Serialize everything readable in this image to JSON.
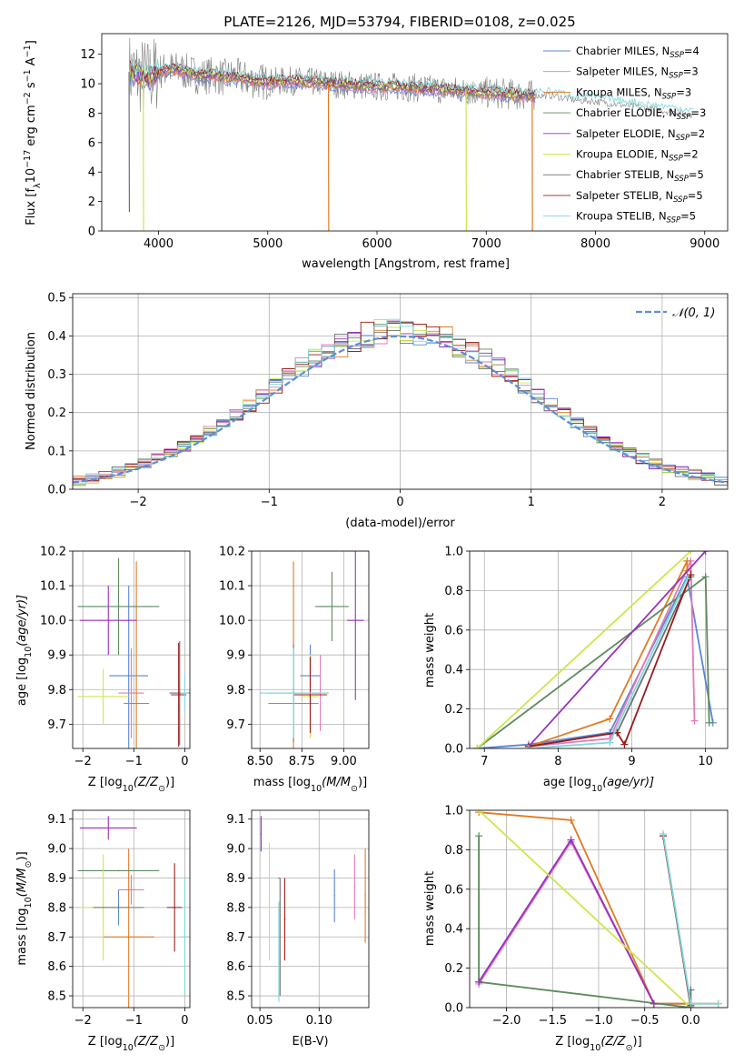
{
  "figure": {
    "title": "PLATE=2126, MJD=53794, FIBERID=0108, z=0.025"
  },
  "colors": {
    "Chabrier MILES": "#5a86d4",
    "Salpeter MILES": "#e57ab8",
    "Kroupa MILES": "#e07a22",
    "Chabrier ELODIE": "#5e8a5e",
    "Salpeter ELODIE": "#9b30c0",
    "Kroupa ELODIE": "#cbe84a",
    "Chabrier STELIB": "#707070",
    "Salpeter STELIB": "#9b1b1b",
    "Kroupa STELIB": "#7dd8dc",
    "data": "#808080",
    "gaussian": "#5b8fd6"
  },
  "chart_data": [
    {
      "id": "spectrum",
      "type": "line",
      "title": "PLATE=2126, MJD=53794, FIBERID=0108, z=0.025",
      "xlabel": "wavelength [Angstrom, rest frame]",
      "ylabel_parts": [
        "Flux [f",
        "λ",
        "10",
        "−17",
        " erg cm",
        "−2",
        " s",
        "−1",
        " A",
        "−1",
        "]"
      ],
      "xlim": [
        3480,
        9210
      ],
      "ylim": [
        0,
        13.4
      ],
      "xticks": [
        4000,
        5000,
        6000,
        7000,
        8000,
        9000
      ],
      "yticks": [
        0,
        2,
        4,
        6,
        8,
        10,
        12
      ],
      "grid": false,
      "legend_position": "upper-right",
      "legend": [
        {
          "name": "Chabrier MILES",
          "nssp": "4"
        },
        {
          "name": "Salpeter MILES",
          "nssp": "3"
        },
        {
          "name": "Kroupa MILES",
          "nssp": "3"
        },
        {
          "name": "Chabrier ELODIE",
          "nssp": "3"
        },
        {
          "name": "Salpeter ELODIE",
          "nssp": "2"
        },
        {
          "name": "Kroupa ELODIE",
          "nssp": "2"
        },
        {
          "name": "Chabrier STELIB",
          "nssp": "5"
        },
        {
          "name": "Salpeter STELIB",
          "nssp": "5"
        },
        {
          "name": "Kroupa STELIB",
          "nssp": "5"
        }
      ],
      "legend_nssp_label": "N",
      "legend_nssp_sub": "SSP",
      "continuum": {
        "x": [
          3740,
          3800,
          3900,
          4000,
          4100,
          4200,
          4300,
          4400,
          4500,
          4600,
          4700,
          4800,
          4900,
          5000,
          5200,
          5400,
          5600,
          5800,
          6000,
          6200,
          6400,
          6600,
          6800,
          7000,
          7200,
          7400,
          7600,
          7800,
          8000,
          8200,
          8400,
          8600,
          8800,
          8900
        ],
        "y": [
          10.8,
          10.6,
          10.4,
          10.8,
          11.0,
          10.9,
          10.7,
          10.5,
          10.6,
          10.4,
          10.5,
          10.3,
          10.2,
          10.1,
          10.2,
          10.1,
          10.0,
          9.9,
          9.8,
          9.8,
          9.7,
          9.6,
          9.5,
          9.4,
          9.3,
          9.2,
          9.2,
          8.9,
          8.8,
          8.6,
          8.4,
          8.2,
          8.0,
          7.9
        ]
      },
      "dropouts": [
        {
          "series": "Kroupa MILES",
          "x": 5555,
          "y": 0
        },
        {
          "series": "Kroupa ELODIE",
          "x": 6815,
          "y": 0
        },
        {
          "series": "Kroupa MILES",
          "x": 7420,
          "y": 0
        },
        {
          "series": "Chabrier STELIB",
          "x": 3730,
          "y": 1.3
        },
        {
          "series": "Kroupa ELODIE",
          "x": 3860,
          "y": 0
        }
      ]
    },
    {
      "id": "residuals",
      "type": "histogram",
      "xlabel": "(data-model)/error",
      "ylabel": "Normed distribution",
      "xlim": [
        -2.5,
        2.5
      ],
      "ylim": [
        0,
        0.51
      ],
      "xticks": [
        -2,
        -1,
        0,
        1,
        2
      ],
      "yticks": [
        0.0,
        0.1,
        0.2,
        0.3,
        0.4,
        0.5
      ],
      "grid": true,
      "legend_position": "upper-right",
      "gaussian_label": "𝒩(0, 1)",
      "bin_width": 0.1,
      "bin_start": -2.5
    },
    {
      "id": "age-vs-Z",
      "type": "errorbar",
      "xlabel_parts": [
        "Z [log",
        "10",
        "(Z/Z",
        "⊙",
        ")]"
      ],
      "ylabel_parts": [
        "age  [log",
        "10",
        "(age/yr)]"
      ],
      "xlim": [
        -2.2,
        0.1
      ],
      "ylim": [
        9.63,
        10.2
      ],
      "xticks": [
        -2,
        -1,
        0
      ],
      "yticks": [
        9.7,
        9.8,
        9.9,
        10.0,
        10.1,
        10.2
      ],
      "grid": true,
      "points": [
        {
          "series": "Chabrier MILES",
          "x": -1.1,
          "xerr": 0.38,
          "y": 9.84,
          "yerr": 0.26
        },
        {
          "series": "Salpeter MILES",
          "x": -1.05,
          "xerr": 0.25,
          "y": 9.79,
          "yerr": 0.13
        },
        {
          "series": "Kroupa MILES",
          "x": -0.95,
          "xerr": 0.25,
          "y": 9.76,
          "yerr": 0.41
        },
        {
          "series": "Chabrier ELODIE",
          "x": -1.3,
          "xerr": 0.8,
          "y": 10.04,
          "yerr": 0.14
        },
        {
          "series": "Salpeter ELODIE",
          "x": -1.5,
          "xerr": 0.56,
          "y": 10.0,
          "yerr": 0.1
        },
        {
          "series": "Kroupa ELODIE",
          "x": -1.6,
          "xerr": 0.5,
          "y": 9.78,
          "yerr": 0.08
        },
        {
          "series": "Chabrier STELIB",
          "x": -0.1,
          "xerr": 0.2,
          "y": 9.79,
          "yerr": 0.15
        },
        {
          "series": "Salpeter STELIB",
          "x": -0.12,
          "xerr": 0.15,
          "y": 9.785,
          "yerr": 0.15
        },
        {
          "series": "Kroupa STELIB",
          "x": 0.0,
          "xerr": 0.08,
          "y": 9.79,
          "yerr": 0.05
        }
      ]
    },
    {
      "id": "age-vs-mass",
      "type": "errorbar",
      "xlabel_parts": [
        "mass [log",
        "10",
        "(M/M",
        "⊙",
        ")]"
      ],
      "xlim": [
        8.45,
        9.15
      ],
      "ylim": [
        9.63,
        10.2
      ],
      "xticks": [
        8.5,
        8.75,
        9.0
      ],
      "yticks": [
        9.7,
        9.8,
        9.9,
        10.0,
        10.1,
        10.2
      ],
      "grid": true,
      "points": [
        {
          "series": "Chabrier MILES",
          "x": 8.8,
          "xerr": 0.06,
          "y": 9.84,
          "yerr": 0.09
        },
        {
          "series": "Salpeter MILES",
          "x": 8.86,
          "xerr": 0.05,
          "y": 9.79,
          "yerr": 0.11
        },
        {
          "series": "Kroupa MILES",
          "x": 8.7,
          "xerr": 0.15,
          "y": 9.76,
          "yerr": 0.41
        },
        {
          "series": "Chabrier ELODIE",
          "x": 8.93,
          "xerr": 0.1,
          "y": 10.04,
          "yerr": 0.1
        },
        {
          "series": "Salpeter ELODIE",
          "x": 9.07,
          "xerr": 0.05,
          "y": 10.0,
          "yerr": 0.23
        },
        {
          "series": "Kroupa ELODIE",
          "x": 8.8,
          "xerr": 0.05,
          "y": 9.78,
          "yerr": 0.12
        },
        {
          "series": "Chabrier STELIB",
          "x": 8.7,
          "xerr": 0.15,
          "y": 9.79,
          "yerr": 0.14
        },
        {
          "series": "Salpeter STELIB",
          "x": 8.8,
          "xerr": 0.1,
          "y": 9.785,
          "yerr": 0.11
        },
        {
          "series": "Kroupa STELIB",
          "x": 8.7,
          "xerr": 0.2,
          "y": 9.79,
          "yerr": 0.13
        }
      ]
    },
    {
      "id": "massweight-vs-age",
      "type": "line",
      "xlabel_parts": [
        "age  [log",
        "10",
        "(age/yr)]"
      ],
      "ylabel": "mass weight",
      "xlim": [
        6.8,
        10.3
      ],
      "ylim": [
        0,
        1.0
      ],
      "xticks": [
        7,
        8,
        9,
        10
      ],
      "yticks": [
        0.0,
        0.2,
        0.4,
        0.6,
        0.8,
        1.0
      ],
      "grid": true,
      "series": [
        {
          "name": "Chabrier MILES",
          "x": [
            6.9,
            7.6,
            8.7,
            9.75,
            10.1
          ],
          "y": [
            0.0,
            0.02,
            0.08,
            0.87,
            0.13
          ]
        },
        {
          "name": "Salpeter MILES",
          "x": [
            7.6,
            8.7,
            9.8,
            9.85
          ],
          "y": [
            0.01,
            0.05,
            0.95,
            0.14
          ]
        },
        {
          "name": "Kroupa MILES",
          "x": [
            7.6,
            8.7,
            9.75,
            9.75
          ],
          "y": [
            0.01,
            0.15,
            0.95,
            0.9
          ]
        },
        {
          "name": "Chabrier ELODIE",
          "x": [
            6.9,
            10.0,
            10.05
          ],
          "y": [
            0.0,
            0.87,
            0.13
          ]
        },
        {
          "name": "Salpeter ELODIE",
          "x": [
            7.6,
            10.0
          ],
          "y": [
            0.01,
            1.0
          ]
        },
        {
          "name": "Kroupa ELODIE",
          "x": [
            6.9,
            9.8
          ],
          "y": [
            0.0,
            1.0
          ]
        },
        {
          "name": "Chabrier STELIB",
          "x": [
            7.6,
            8.8,
            9.8
          ],
          "y": [
            0.01,
            0.08,
            0.87
          ]
        },
        {
          "name": "Salpeter STELIB",
          "x": [
            7.6,
            8.8,
            8.9,
            9.8
          ],
          "y": [
            0.01,
            0.08,
            0.02,
            0.88
          ]
        },
        {
          "name": "Kroupa STELIB",
          "x": [
            7.6,
            8.7,
            9.75
          ],
          "y": [
            0.0,
            0.03,
            0.86
          ]
        }
      ]
    },
    {
      "id": "mass-vs-Z",
      "type": "errorbar",
      "xlabel_parts": [
        "Z [log",
        "10",
        "(Z/Z",
        "⊙",
        ")]"
      ],
      "ylabel_parts": [
        "mass [log",
        "10",
        "(M/M",
        "⊙",
        ")]"
      ],
      "xlim": [
        -2.2,
        0.1
      ],
      "ylim": [
        8.46,
        9.13
      ],
      "xticks": [
        -2,
        -1,
        0
      ],
      "yticks": [
        8.5,
        8.6,
        8.7,
        8.8,
        8.9,
        9.0,
        9.1
      ],
      "grid": true,
      "points": [
        {
          "series": "Chabrier MILES",
          "x": -1.3,
          "xerr": 0.0,
          "y": 8.8,
          "yerr": 0.06
        },
        {
          "series": "Salpeter MILES",
          "x": -1.05,
          "xerr": 0.25,
          "y": 8.86,
          "yerr": 0.05
        },
        {
          "series": "Kroupa MILES",
          "x": -1.1,
          "xerr": 0.5,
          "y": 8.7,
          "yerr": 0.3
        },
        {
          "series": "Chabrier ELODIE",
          "x": -1.3,
          "xerr": 0.8,
          "y": 8.925,
          "yerr": 0.0
        },
        {
          "series": "Salpeter ELODIE",
          "x": -1.5,
          "xerr": 0.56,
          "y": 9.07,
          "yerr": 0.04
        },
        {
          "series": "Kroupa ELODIE",
          "x": -1.6,
          "xerr": 0.5,
          "y": 8.8,
          "yerr": 0.18
        },
        {
          "series": "Chabrier STELIB",
          "x": -1.3,
          "xerr": 0.5,
          "y": 8.8,
          "yerr": 0.0
        },
        {
          "series": "Salpeter STELIB",
          "x": -0.2,
          "xerr": 0.15,
          "y": 8.8,
          "yerr": 0.15
        },
        {
          "series": "Kroupa STELIB",
          "x": 0.0,
          "xerr": 0.1,
          "y": 8.7,
          "yerr": 0.2
        }
      ]
    },
    {
      "id": "mass-vs-ebv",
      "type": "errorbar",
      "xlabel": "E(B-V)",
      "xlim": [
        0.043,
        0.142
      ],
      "ylim": [
        8.46,
        9.13
      ],
      "xticks": [
        0.05,
        0.1
      ],
      "xticklabels": [
        "0.05",
        "0.10"
      ],
      "yticks": [
        8.5,
        8.6,
        8.7,
        8.8,
        8.9,
        9.0,
        9.1
      ],
      "grid": true,
      "points": [
        {
          "series": "Chabrier MILES",
          "x": 0.113,
          "y": 8.84,
          "yerr": 0.09
        },
        {
          "series": "Salpeter MILES",
          "x": 0.13,
          "y": 8.87,
          "yerr": 0.11
        },
        {
          "series": "Kroupa MILES",
          "x": 0.139,
          "y": 8.84,
          "yerr": 0.16
        },
        {
          "series": "Chabrier ELODIE",
          "x": 0.066,
          "y": 8.9,
          "yerr": 0.0
        },
        {
          "series": "Salpeter ELODIE",
          "x": 0.051,
          "y": 9.05,
          "yerr": 0.06
        },
        {
          "series": "Kroupa ELODIE",
          "x": 0.058,
          "y": 8.82,
          "yerr": 0.2
        },
        {
          "series": "Chabrier STELIB",
          "x": 0.067,
          "y": 8.7,
          "yerr": 0.2
        },
        {
          "series": "Salpeter STELIB",
          "x": 0.071,
          "y": 8.76,
          "yerr": 0.14
        },
        {
          "series": "Kroupa STELIB",
          "x": 0.066,
          "y": 8.65,
          "yerr": 0.17
        }
      ]
    },
    {
      "id": "massweight-vs-Z",
      "type": "line",
      "xlabel_parts": [
        "Z [log",
        "10",
        "(Z/Z",
        "⊙",
        ")]"
      ],
      "ylabel": "mass weight",
      "xlim": [
        -2.4,
        0.4
      ],
      "ylim": [
        0,
        1.0
      ],
      "xticks": [
        -2.0,
        -1.5,
        -1.0,
        -0.5,
        0.0
      ],
      "xticklabels": [
        "−2.0",
        "−1.5",
        "−1.0",
        "−0.5",
        "0.0"
      ],
      "yticks": [
        0.0,
        0.2,
        0.4,
        0.6,
        0.8,
        1.0
      ],
      "grid": true,
      "series": [
        {
          "name": "Chabrier MILES",
          "x": [
            -2.3,
            -1.3,
            -0.4,
            0.0
          ],
          "y": [
            0.13,
            0.85,
            0.02,
            0.02
          ]
        },
        {
          "name": "Salpeter MILES",
          "x": [
            -2.3,
            -1.3,
            -0.4,
            0.0
          ],
          "y": [
            0.12,
            0.84,
            0.02,
            0.02
          ]
        },
        {
          "name": "Kroupa MILES",
          "x": [
            -2.3,
            -1.3,
            -0.4,
            0.3
          ],
          "y": [
            0.99,
            0.95,
            0.02,
            0.02
          ]
        },
        {
          "name": "Chabrier ELODIE",
          "x": [
            -2.3,
            -2.3,
            0.0
          ],
          "y": [
            0.87,
            0.13,
            0.0
          ]
        },
        {
          "name": "Salpeter ELODIE",
          "x": [
            -2.3,
            -1.3,
            -0.4
          ],
          "y": [
            0.13,
            0.85,
            0.02
          ]
        },
        {
          "name": "Kroupa ELODIE",
          "x": [
            -2.3,
            0.0
          ],
          "y": [
            1.0,
            0.0
          ]
        },
        {
          "name": "Chabrier STELIB",
          "x": [
            -0.3,
            0.0,
            0.0
          ],
          "y": [
            0.87,
            0.0,
            0.09
          ]
        },
        {
          "name": "Salpeter STELIB",
          "x": [
            -0.3,
            0.0
          ],
          "y": [
            0.87,
            0.01
          ]
        },
        {
          "name": "Kroupa STELIB",
          "x": [
            -0.3,
            0.0,
            0.3
          ],
          "y": [
            0.88,
            0.02,
            0.02
          ]
        }
      ]
    }
  ]
}
